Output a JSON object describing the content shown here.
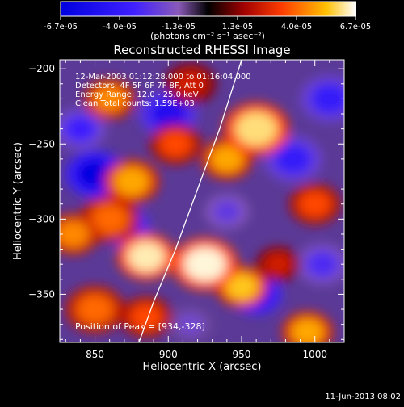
{
  "chart_data": {
    "type": "heatmap",
    "title": "Reconstructed RHESSI Image",
    "xlabel": "Heliocentric X (arcsec)",
    "ylabel": "Heliocentric Y (arcsec)",
    "xlim": [
      826,
      1020
    ],
    "ylim": [
      -382,
      -194
    ],
    "x_ticks": [
      850,
      900,
      950,
      1000
    ],
    "y_ticks": [
      -200,
      -250,
      -300,
      -350
    ],
    "colorbar": {
      "ticks": [
        "-6.7e-05",
        "-4.0e-05",
        "-1.3e-05",
        "1.3e-05",
        "4.0e-05",
        "6.7e-05"
      ],
      "unit_label": "(photons cm⁻² s⁻¹ asec⁻²)",
      "range": [
        -6.7e-05,
        6.7e-05
      ]
    },
    "annotations": [
      "12-Mar-2003 01:12:28.000 to 01:16:04.000",
      "Detectors: 4F 5F 6F 7F 8F, Att 0",
      "Energy Range: 12.0 - 25.0 keV",
      "Clean     Total counts: 1.59E+03"
    ],
    "peak_label": "Position of Peak = [934,-328]",
    "peak": [
      934,
      -328
    ],
    "limb_curve": [
      [
        880,
        -382
      ],
      [
        890,
        -355
      ],
      [
        905,
        -320
      ],
      [
        920,
        -280
      ],
      [
        935,
        -240
      ],
      [
        950,
        -194
      ]
    ],
    "blobs": [
      {
        "x": 960,
        "y": -240,
        "v": 6e-05,
        "r": 18
      },
      {
        "x": 940,
        "y": -260,
        "v": 5e-05,
        "r": 14
      },
      {
        "x": 925,
        "y": -330,
        "v": 6.5e-05,
        "r": 18
      },
      {
        "x": 950,
        "y": -345,
        "v": 5.5e-05,
        "r": 14
      },
      {
        "x": 885,
        "y": -325,
        "v": 6.3e-05,
        "r": 16
      },
      {
        "x": 860,
        "y": -300,
        "v": 4e-05,
        "r": 16
      },
      {
        "x": 875,
        "y": -275,
        "v": 5e-05,
        "r": 15
      },
      {
        "x": 835,
        "y": -310,
        "v": 4.5e-05,
        "r": 14
      },
      {
        "x": 850,
        "y": -360,
        "v": 4e-05,
        "r": 16
      },
      {
        "x": 885,
        "y": -365,
        "v": 3.5e-05,
        "r": 14
      },
      {
        "x": 905,
        "y": -250,
        "v": 3.5e-05,
        "r": 14
      },
      {
        "x": 860,
        "y": -220,
        "v": 4.5e-05,
        "r": 14
      },
      {
        "x": 1000,
        "y": -290,
        "v": 3.5e-05,
        "r": 14
      },
      {
        "x": 995,
        "y": -375,
        "v": 5e-05,
        "r": 14
      },
      {
        "x": 975,
        "y": -330,
        "v": 2.5e-05,
        "r": 12
      },
      {
        "x": 915,
        "y": -210,
        "v": 2.5e-05,
        "r": 14
      },
      {
        "x": 850,
        "y": -270,
        "v": -6.7e-05,
        "r": 16
      },
      {
        "x": 900,
        "y": -230,
        "v": -5e-05,
        "r": 16
      },
      {
        "x": 870,
        "y": -305,
        "v": -5.5e-05,
        "r": 14
      },
      {
        "x": 960,
        "y": -350,
        "v": -6e-05,
        "r": 14
      },
      {
        "x": 985,
        "y": -260,
        "v": -4e-05,
        "r": 16
      },
      {
        "x": 1010,
        "y": -220,
        "v": -4e-05,
        "r": 16
      },
      {
        "x": 940,
        "y": -295,
        "v": -2.5e-05,
        "r": 12
      },
      {
        "x": 840,
        "y": -240,
        "v": -3.5e-05,
        "r": 14
      },
      {
        "x": 1005,
        "y": -330,
        "v": -3e-05,
        "r": 14
      },
      {
        "x": 915,
        "y": -370,
        "v": -2e-05,
        "r": 12
      }
    ]
  },
  "footer": {
    "timestamp": "11-Jun-2013 08:02"
  }
}
